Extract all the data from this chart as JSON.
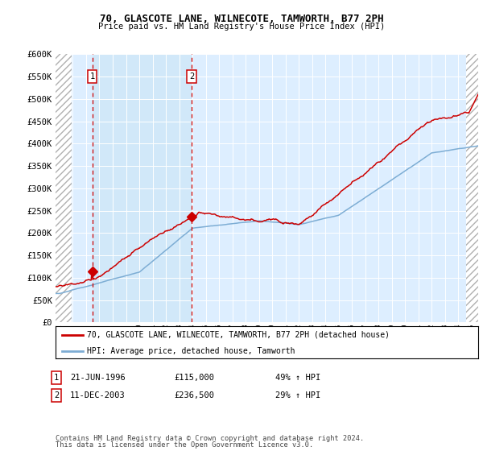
{
  "title": "70, GLASCOTE LANE, WILNECOTE, TAMWORTH, B77 2PH",
  "subtitle": "Price paid vs. HM Land Registry's House Price Index (HPI)",
  "ylim": [
    0,
    600000
  ],
  "yticks": [
    0,
    50000,
    100000,
    150000,
    200000,
    250000,
    300000,
    350000,
    400000,
    450000,
    500000,
    550000,
    600000
  ],
  "background_color": "#ffffff",
  "plot_bg_color": "#ddeeff",
  "highlight_bg": "#d0e8f8",
  "grid_color": "#ffffff",
  "sale1_date": 1996.47,
  "sale1_price": 115000,
  "sale2_date": 2003.94,
  "sale2_price": 236500,
  "legend_entry1": "70, GLASCOTE LANE, WILNECOTE, TAMWORTH, B77 2PH (detached house)",
  "legend_entry2": "HPI: Average price, detached house, Tamworth",
  "footnote1": "Contains HM Land Registry data © Crown copyright and database right 2024.",
  "footnote2": "This data is licensed under the Open Government Licence v3.0.",
  "line_color_red": "#cc0000",
  "line_color_blue": "#7dadd4",
  "xmin": 1993.7,
  "xmax": 2025.5,
  "hatch_end": 1994.9,
  "hatch_start_right": 2024.6
}
